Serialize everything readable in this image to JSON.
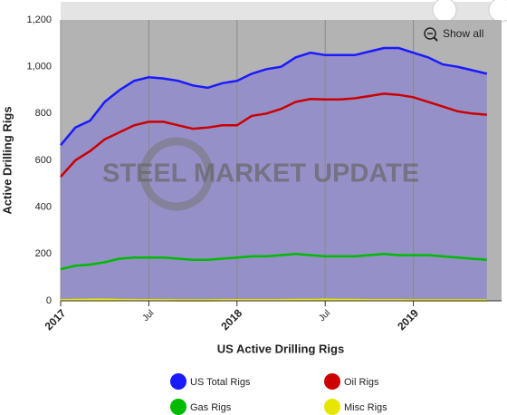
{
  "chart_data": {
    "type": "line",
    "x_label": "US Active Drilling Rigs",
    "y_label": "Active Drilling Rigs",
    "watermark": "STEEL MARKET UPDATE",
    "button": "Show all",
    "area_color": "#9690c8",
    "background": "#b3b3b3",
    "grid": true,
    "legend": "bottom",
    "x": [
      "2017-01",
      "2017-02",
      "2017-03",
      "2017-04",
      "2017-05",
      "2017-06",
      "2017-07",
      "2017-08",
      "2017-09",
      "2017-10",
      "2017-11",
      "2017-12",
      "2018-01",
      "2018-02",
      "2018-03",
      "2018-04",
      "2018-05",
      "2018-06",
      "2018-07",
      "2018-08",
      "2018-09",
      "2018-10",
      "2018-11",
      "2018-12",
      "2019-01",
      "2019-02",
      "2019-03",
      "2019-04",
      "2019-05",
      "2019-06"
    ],
    "xlim": [
      "2017-01",
      "2019-07"
    ],
    "xticks": [
      {
        "value": "2017-01",
        "label": "2017"
      },
      {
        "value": "2017-07",
        "label": "Jul"
      },
      {
        "value": "2018-01",
        "label": "2018"
      },
      {
        "value": "2018-07",
        "label": "Jul"
      },
      {
        "value": "2019-01",
        "label": "2019"
      }
    ],
    "ylim": [
      0,
      1200
    ],
    "yticks": [
      0,
      200,
      400,
      600,
      800,
      {
        "value": 1000,
        "label": "1,000"
      },
      {
        "value": 1200,
        "label": "1,200"
      }
    ],
    "series": [
      {
        "name": "US Total Rigs",
        "color": "#1a1aff",
        "values": [
          665,
          740,
          770,
          850,
          900,
          940,
          955,
          950,
          940,
          920,
          910,
          930,
          940,
          970,
          990,
          1000,
          1040,
          1060,
          1050,
          1050,
          1050,
          1065,
          1080,
          1080,
          1060,
          1040,
          1010,
          1000,
          985,
          970
        ]
      },
      {
        "name": "Oil Rigs",
        "color": "#cc0000",
        "values": [
          530,
          600,
          640,
          690,
          720,
          750,
          765,
          765,
          750,
          735,
          740,
          750,
          750,
          790,
          800,
          820,
          850,
          862,
          860,
          860,
          865,
          875,
          885,
          880,
          870,
          850,
          830,
          810,
          800,
          795
        ]
      },
      {
        "name": "Gas Rigs",
        "color": "#00bb00",
        "values": [
          135,
          150,
          155,
          165,
          180,
          185,
          185,
          185,
          180,
          175,
          175,
          180,
          185,
          190,
          190,
          195,
          200,
          195,
          190,
          190,
          190,
          195,
          200,
          195,
          195,
          195,
          190,
          185,
          180,
          175
        ]
      },
      {
        "name": "Misc Rigs",
        "color": "#e6e600",
        "values": [
          3,
          4,
          5,
          5,
          4,
          3,
          3,
          3,
          2,
          2,
          2,
          3,
          3,
          3,
          3,
          3,
          4,
          4,
          5,
          4,
          4,
          3,
          3,
          3,
          2,
          2,
          2,
          2,
          2,
          2
        ]
      }
    ]
  }
}
